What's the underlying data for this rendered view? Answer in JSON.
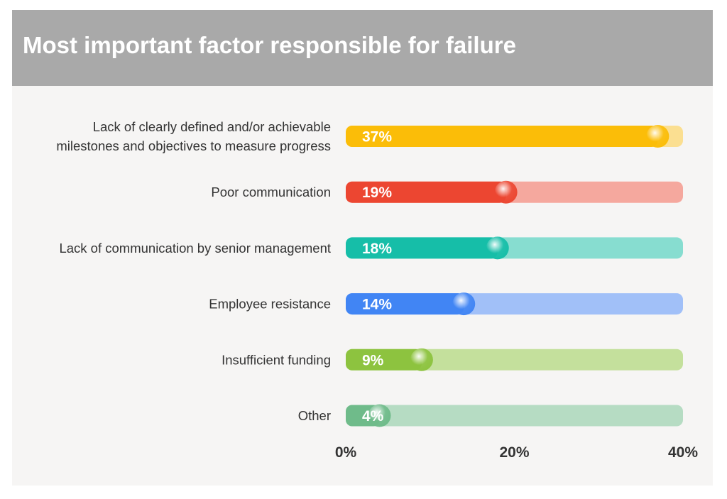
{
  "chart_data": {
    "type": "bar",
    "orientation": "horizontal",
    "title": "Most important factor responsible for failure",
    "xlim": [
      0,
      40
    ],
    "x_ticks": [
      "0%",
      "20%",
      "40%"
    ],
    "x_tick_values": [
      0,
      20,
      40
    ],
    "unit": "%",
    "categories": [
      [
        "Lack of clearly defined and/or achievable",
        "milestones and objectives to measure progress"
      ],
      [
        "Poor communication"
      ],
      [
        "Lack of communication by senior management"
      ],
      [
        "Employee resistance"
      ],
      [
        "Insufficient funding"
      ],
      [
        "Other"
      ]
    ],
    "values": [
      37,
      19,
      18,
      14,
      9,
      4
    ],
    "value_labels": [
      "37%",
      "19%",
      "18%",
      "14%",
      "9%",
      "4%"
    ],
    "colors": [
      "#fbbd08",
      "#ec4631",
      "#16bea8",
      "#4185f4",
      "#8dc33f",
      "#6fbb8a"
    ],
    "track_colors": [
      "#fbdf91",
      "#f5a89e",
      "#87ddd0",
      "#a1c0f8",
      "#c4e09c",
      "#b6dcc3"
    ],
    "grid": false
  }
}
